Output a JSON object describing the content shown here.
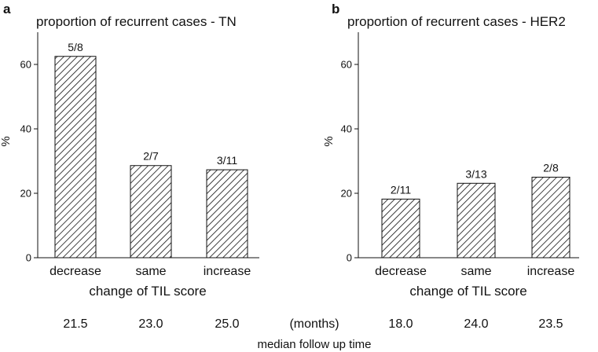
{
  "chart_data": [
    {
      "type": "bar",
      "panel": "a",
      "title": "proportion of recurrent cases - TN",
      "categories": [
        "decrease",
        "same",
        "increase"
      ],
      "values": [
        62.5,
        28.6,
        27.3
      ],
      "data_labels": [
        "5/8",
        "2/7",
        "3/11"
      ],
      "xlabel": "change of TIL score",
      "ylabel": "%",
      "ylim": [
        0,
        70
      ],
      "yticks": [
        0,
        20,
        40,
        60
      ],
      "follow_up": [
        "21.5",
        "23.0",
        "25.0"
      ]
    },
    {
      "type": "bar",
      "panel": "b",
      "title": "proportion of recurrent cases - HER2",
      "categories": [
        "decrease",
        "same",
        "increase"
      ],
      "values": [
        18.2,
        23.1,
        25.0
      ],
      "data_labels": [
        "2/11",
        "3/13",
        "2/8"
      ],
      "xlabel": "change of TIL score",
      "ylabel": "%",
      "ylim": [
        0,
        70
      ],
      "yticks": [
        0,
        20,
        40,
        60
      ],
      "follow_up": [
        "18.0",
        "24.0",
        "23.5"
      ]
    }
  ],
  "follow_up_unit": "(months)",
  "follow_up_caption": "median follow up time"
}
